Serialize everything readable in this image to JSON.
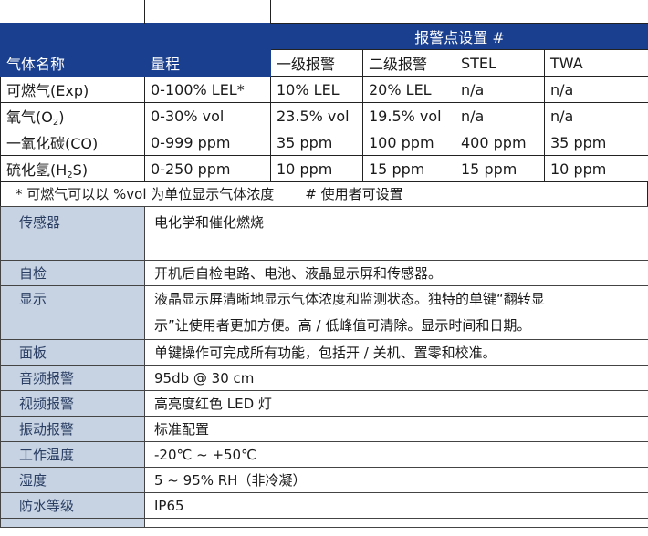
{
  "gas_table": {
    "alarm_group_header": "报警点设置 #",
    "headers": {
      "gas_name": "气体名称",
      "range": "量程",
      "low": "一级报警",
      "high": "二级报警",
      "stel": "STEL",
      "twa": "TWA"
    },
    "rows": [
      {
        "gas": "可燃气(Exp)",
        "gas_pre": "",
        "gas_sub": "",
        "gas_post": "",
        "range": "0-100% LEL*",
        "low": "10% LEL",
        "high": "20% LEL",
        "stel": "n/a",
        "twa": "n/a"
      },
      {
        "gas": "",
        "gas_pre": "氧气(O",
        "gas_sub": "2",
        "gas_post": ")",
        "range": "0-30% vol",
        "low": "23.5% vol",
        "high": "19.5% vol",
        "stel": "n/a",
        "twa": "n/a"
      },
      {
        "gas": "一氧化碳(CO)",
        "gas_pre": "",
        "gas_sub": "",
        "gas_post": "",
        "range": "0-999 ppm",
        "low": "35 ppm",
        "high": "100 ppm",
        "stel": "400 ppm",
        "twa": "35 ppm"
      },
      {
        "gas": "",
        "gas_pre": "硫化氢(H",
        "gas_sub": "2",
        "gas_post": "S)",
        "range": "0-250 ppm",
        "low": "10 ppm",
        "high": "15 ppm",
        "stel": "15 ppm",
        "twa": "10 ppm"
      }
    ],
    "footnote_1": "* 可燃气可以以 %vol 为单位显示气体浓度",
    "footnote_2": "# 使用者可设置"
  },
  "spec_table": {
    "rows": [
      {
        "label": "传感器",
        "value": "电化学和催化燃烧"
      },
      {
        "label": "自检",
        "value": "开机后自检电路、电池、液晶显示屏和传感器。"
      },
      {
        "label": "显示",
        "value_line1": "液晶显示屏清晰地显示气体浓度和监测状态。独特的单键“翻转显",
        "value_line2": "示”让使用者更加方便。高 / 低峰值可清除。显示时间和日期。"
      },
      {
        "label": "面板",
        "value": "单键操作可完成所有功能，包括开 / 关机、置零和校准。"
      },
      {
        "label": "音频报警",
        "value": "95db @ 30 cm"
      },
      {
        "label": "视频报警",
        "value": "高亮度红色 LED 灯"
      },
      {
        "label": "振动报警",
        "value": "标准配置"
      },
      {
        "label": "工作温度",
        "value": "-20℃ ~ +50℃"
      },
      {
        "label": "湿度",
        "value": "5 ~ 95% RH（非冷凝）"
      },
      {
        "label": "防水等级",
        "value": "IP65"
      }
    ]
  },
  "colors": {
    "header_blue": "#1a3f8e",
    "label_cell": "#c7d3e3"
  }
}
